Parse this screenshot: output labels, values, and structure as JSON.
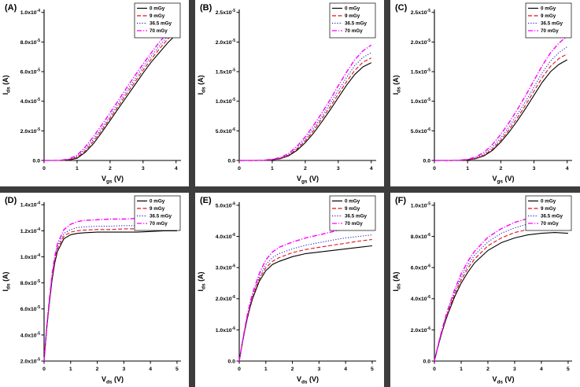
{
  "figure": {
    "background": "#ffffff",
    "separator_color": "#3d3d3d",
    "legend_labels": [
      "0 mGy",
      "9 mGy",
      "36.5 mGy",
      "70 mGy"
    ],
    "series_colors": {
      "0 mGy": "#000000",
      "9 mGy": "#e31219",
      "36.5 mGy": "#2323cc",
      "70 mGy": "#ff00ff"
    }
  },
  "chart_data": [
    {
      "type": "line",
      "panel_label": "(A)",
      "xlabel": "V_gs (V)",
      "ylabel": "I_ds (A)",
      "xlim": [
        0,
        4.15
      ],
      "ylim": [
        0,
        0.000102
      ],
      "xticks": [
        0,
        1,
        2,
        3,
        4
      ],
      "yticks": [
        0,
        2e-05,
        4e-05,
        6e-05,
        8e-05,
        0.0001
      ],
      "legend_position": "top-right",
      "grid": false,
      "x": [
        0,
        0.5,
        0.75,
        1,
        1.25,
        1.5,
        1.75,
        2,
        2.25,
        2.5,
        2.75,
        3,
        3.25,
        3.5,
        3.75,
        4
      ],
      "series": [
        {
          "name": "0 mGy",
          "color": "#000000",
          "dash": "solid",
          "y": [
            0,
            0,
            3e-07,
            1.5e-06,
            5.5e-06,
            1.15e-05,
            1.9e-05,
            2.7e-05,
            3.5e-05,
            4.3e-05,
            5.1e-05,
            5.9e-05,
            6.65e-05,
            7.3e-05,
            7.95e-05,
            8.5e-05
          ]
        },
        {
          "name": "9 mGy",
          "color": "#e31219",
          "dash": "dashed",
          "y": [
            0,
            0,
            5e-07,
            2e-06,
            6.5e-06,
            1.3e-05,
            2.05e-05,
            2.85e-05,
            3.67e-05,
            4.5e-05,
            5.3e-05,
            6.1e-05,
            6.85e-05,
            7.55e-05,
            8.2e-05,
            8.75e-05
          ]
        },
        {
          "name": "36.5 mGy",
          "color": "#2323cc",
          "dash": "dotted",
          "y": [
            0,
            0,
            7e-07,
            2.7e-06,
            7.8e-06,
            1.45e-05,
            2.2e-05,
            3e-05,
            3.85e-05,
            4.68e-05,
            5.5e-05,
            6.3e-05,
            7.05e-05,
            7.75e-05,
            8.4e-05,
            9e-05
          ]
        },
        {
          "name": "70 mGy",
          "color": "#ff00ff",
          "dash": "dashdot",
          "y": [
            0,
            1e-07,
            1e-06,
            3.5e-06,
            9.2e-06,
            1.62e-05,
            2.4e-05,
            3.22e-05,
            4.05e-05,
            4.9e-05,
            5.72e-05,
            6.52e-05,
            7.28e-05,
            8e-05,
            8.65e-05,
            9.3e-05
          ]
        }
      ]
    },
    {
      "type": "line",
      "panel_label": "(B)",
      "xlabel": "V_gs (V)",
      "ylabel": "I_ds (A)",
      "xlim": [
        0,
        4.15
      ],
      "ylim": [
        0,
        2.55e-05
      ],
      "xticks": [
        0,
        1,
        2,
        3,
        4
      ],
      "yticks": [
        0,
        5e-06,
        1e-05,
        1.5e-05,
        2e-05,
        2.5e-05
      ],
      "legend_position": "top-right",
      "grid": false,
      "x": [
        0,
        0.5,
        0.75,
        1,
        1.25,
        1.5,
        1.75,
        2,
        2.25,
        2.5,
        2.75,
        3,
        3.25,
        3.5,
        3.75,
        4
      ],
      "series": [
        {
          "name": "0 mGy",
          "color": "#000000",
          "dash": "solid",
          "y": [
            0,
            0,
            0,
            1e-07,
            3e-07,
            8e-07,
            1.7e-06,
            3e-06,
            4.6e-06,
            6.5e-06,
            8.5e-06,
            1.06e-05,
            1.27e-05,
            1.45e-05,
            1.58e-05,
            1.65e-05
          ]
        },
        {
          "name": "9 mGy",
          "color": "#e31219",
          "dash": "dashed",
          "y": [
            0,
            0,
            0,
            1.2e-07,
            3.5e-07,
            9e-07,
            1.9e-06,
            3.3e-06,
            5e-06,
            7e-06,
            9e-06,
            1.12e-05,
            1.33e-05,
            1.52e-05,
            1.66e-05,
            1.73e-05
          ]
        },
        {
          "name": "36.5 mGy",
          "color": "#2323cc",
          "dash": "dotted",
          "y": [
            0,
            0,
            0,
            1.5e-07,
            4e-07,
            1e-06,
            2.1e-06,
            3.6e-06,
            5.4e-06,
            7.4e-06,
            9.6e-06,
            1.18e-05,
            1.4e-05,
            1.6e-05,
            1.74e-05,
            1.82e-05
          ]
        },
        {
          "name": "70 mGy",
          "color": "#ff00ff",
          "dash": "dashdot",
          "y": [
            0,
            0,
            5e-08,
            2e-07,
            5e-07,
            1.2e-06,
            2.4e-06,
            4e-06,
            5.9e-06,
            8e-06,
            1.02e-05,
            1.26e-05,
            1.49e-05,
            1.7e-05,
            1.85e-05,
            1.95e-05
          ]
        }
      ]
    },
    {
      "type": "line",
      "panel_label": "(C)",
      "xlabel": "V_gs (V)",
      "ylabel": "I_ds (A)",
      "xlim": [
        0,
        4.15
      ],
      "ylim": [
        0,
        2.55e-05
      ],
      "xticks": [
        0,
        1,
        2,
        3,
        4
      ],
      "yticks": [
        0,
        5e-06,
        1e-05,
        1.5e-05,
        2e-05,
        2.5e-05
      ],
      "legend_position": "top-right",
      "grid": false,
      "x": [
        0,
        0.5,
        0.75,
        1,
        1.25,
        1.5,
        1.75,
        2,
        2.25,
        2.5,
        2.75,
        3,
        3.25,
        3.5,
        3.75,
        4
      ],
      "series": [
        {
          "name": "0 mGy",
          "color": "#000000",
          "dash": "solid",
          "y": [
            0,
            0,
            0,
            1e-07,
            3e-07,
            8e-07,
            1.7e-06,
            3.1e-06,
            4.8e-06,
            6.7e-06,
            8.8e-06,
            1.1e-05,
            1.32e-05,
            1.5e-05,
            1.62e-05,
            1.7e-05
          ]
        },
        {
          "name": "9 mGy",
          "color": "#e31219",
          "dash": "dashed",
          "y": [
            0,
            0,
            0,
            1.2e-07,
            3.5e-07,
            9e-07,
            1.9e-06,
            3.4e-06,
            5.2e-06,
            7.2e-06,
            9.4e-06,
            1.17e-05,
            1.4e-05,
            1.59e-05,
            1.72e-05,
            1.8e-05
          ]
        },
        {
          "name": "36.5 mGy",
          "color": "#2323cc",
          "dash": "dotted",
          "y": [
            0,
            0,
            0,
            1.5e-07,
            4.5e-07,
            1.1e-06,
            2.2e-06,
            3.8e-06,
            5.7e-06,
            7.8e-06,
            1e-05,
            1.24e-05,
            1.48e-05,
            1.68e-05,
            1.82e-05,
            1.92e-05
          ]
        },
        {
          "name": "70 mGy",
          "color": "#ff00ff",
          "dash": "dashdot",
          "y": [
            0,
            0,
            5e-08,
            2e-07,
            6e-07,
            1.4e-06,
            2.7e-06,
            4.4e-06,
            6.4e-06,
            8.6e-06,
            1.1e-05,
            1.35e-05,
            1.6e-05,
            1.82e-05,
            1.98e-05,
            2.1e-05
          ]
        }
      ]
    },
    {
      "type": "line",
      "panel_label": "(D)",
      "xlabel": "V_ds (V)",
      "ylabel": "I_ds (A)",
      "xlim": [
        0,
        5.15
      ],
      "ylim": [
        2e-05,
        0.000142
      ],
      "xticks": [
        0,
        1,
        2,
        3,
        4,
        5
      ],
      "yticks": [
        2e-05,
        4e-05,
        6e-05,
        8e-05,
        0.0001,
        0.00012,
        0.00014
      ],
      "legend_position": "top-right",
      "grid": false,
      "x": [
        0,
        0.1,
        0.2,
        0.3,
        0.4,
        0.5,
        0.75,
        1,
        1.25,
        1.5,
        2,
        2.5,
        3,
        3.5,
        4,
        4.5,
        5
      ],
      "series": [
        {
          "name": "0 mGy",
          "color": "#000000",
          "dash": "solid",
          "y": [
            2e-05,
            4.5e-05,
            6.5e-05,
            8.2e-05,
            9.5e-05,
            0.000104,
            0.000114,
            0.000117,
            0.000118,
            0.0001185,
            0.000119,
            0.000119,
            0.000119,
            0.000119,
            0.0001195,
            0.00012,
            0.00012
          ]
        },
        {
          "name": "9 mGy",
          "color": "#e31219",
          "dash": "dashed",
          "y": [
            2e-05,
            4.6e-05,
            6.6e-05,
            8.4e-05,
            9.7e-05,
            0.000106,
            0.000116,
            0.000119,
            0.00012,
            0.0001205,
            0.000121,
            0.000121,
            0.0001215,
            0.0001215,
            0.000122,
            0.000122,
            0.000122
          ]
        },
        {
          "name": "36.5 mGy",
          "color": "#2323cc",
          "dash": "dotted",
          "y": [
            2e-05,
            4.6e-05,
            6.7e-05,
            8.5e-05,
            9.8e-05,
            0.000108,
            0.000118,
            0.000121,
            0.0001225,
            0.000123,
            0.0001235,
            0.0001235,
            0.000124,
            0.000124,
            0.0001245,
            0.000125,
            0.000125
          ]
        },
        {
          "name": "70 mGy",
          "color": "#ff00ff",
          "dash": "dashdot",
          "y": [
            2e-05,
            4.7e-05,
            6.8e-05,
            8.7e-05,
            0.0001,
            0.00011,
            0.000121,
            0.000125,
            0.000127,
            0.000128,
            0.0001285,
            0.000129,
            0.000129,
            0.0001295,
            0.00013,
            0.00013,
            0.00013
          ]
        }
      ]
    },
    {
      "type": "line",
      "panel_label": "(E)",
      "xlabel": "V_ds (V)",
      "ylabel": "I_ds (A)",
      "xlim": [
        0,
        5.15
      ],
      "ylim": [
        0,
        5.1e-06
      ],
      "xticks": [
        0,
        1,
        2,
        3,
        4,
        5
      ],
      "yticks": [
        0,
        1e-06,
        2e-06,
        3e-06,
        4e-06,
        5e-06
      ],
      "legend_position": "top-right",
      "grid": false,
      "x": [
        0,
        0.1,
        0.2,
        0.3,
        0.4,
        0.5,
        0.75,
        1,
        1.25,
        1.5,
        2,
        2.5,
        3,
        3.5,
        4,
        4.5,
        5
      ],
      "series": [
        {
          "name": "0 mGy",
          "color": "#000000",
          "dash": "solid",
          "y": [
            0,
            5e-07,
            9.5e-07,
            1.35e-06,
            1.7e-06,
            2e-06,
            2.55e-06,
            2.9e-06,
            3.1e-06,
            3.2e-06,
            3.35e-06,
            3.45e-06,
            3.5e-06,
            3.55e-06,
            3.6e-06,
            3.65e-06,
            3.7e-06
          ]
        },
        {
          "name": "9 mGy",
          "color": "#e31219",
          "dash": "dashed",
          "y": [
            0,
            5e-07,
            9.7e-07,
            1.38e-06,
            1.74e-06,
            2.05e-06,
            2.62e-06,
            3e-06,
            3.2e-06,
            3.32e-06,
            3.48e-06,
            3.58e-06,
            3.65e-06,
            3.72e-06,
            3.78e-06,
            3.85e-06,
            3.9e-06
          ]
        },
        {
          "name": "36.5 mGy",
          "color": "#2323cc",
          "dash": "dotted",
          "y": [
            0,
            5.2e-07,
            1e-06,
            1.42e-06,
            1.78e-06,
            2.1e-06,
            2.7e-06,
            3.1e-06,
            3.32e-06,
            3.45e-06,
            3.6e-06,
            3.72e-06,
            3.8e-06,
            3.88e-06,
            3.95e-06,
            4e-06,
            4.05e-06
          ]
        },
        {
          "name": "70 mGy",
          "color": "#ff00ff",
          "dash": "dashdot",
          "y": [
            0,
            5.3e-07,
            1.02e-06,
            1.46e-06,
            1.84e-06,
            2.18e-06,
            2.8e-06,
            3.25e-06,
            3.5e-06,
            3.65e-06,
            3.82e-06,
            3.95e-06,
            4.05e-06,
            4.15e-06,
            4.25e-06,
            4.3e-06,
            4.35e-06
          ]
        }
      ]
    },
    {
      "type": "line",
      "panel_label": "(F)",
      "xlabel": "V_ds (V)",
      "ylabel": "I_ds (A)",
      "xlim": [
        0,
        5.15
      ],
      "ylim": [
        0,
        1.02e-05
      ],
      "xticks": [
        0,
        1,
        2,
        3,
        4,
        5
      ],
      "yticks": [
        0,
        2e-06,
        4e-06,
        6e-06,
        8e-06,
        1e-05
      ],
      "legend_position": "top-right",
      "grid": false,
      "x": [
        0,
        0.1,
        0.2,
        0.3,
        0.4,
        0.5,
        0.75,
        1,
        1.25,
        1.5,
        2,
        2.5,
        3,
        3.5,
        4,
        4.5,
        5
      ],
      "series": [
        {
          "name": "0 mGy",
          "color": "#000000",
          "dash": "solid",
          "y": [
            0,
            7e-07,
            1.35e-06,
            1.95e-06,
            2.5e-06,
            3e-06,
            4.1e-06,
            5e-06,
            5.7e-06,
            6.3e-06,
            7.1e-06,
            7.6e-06,
            7.9e-06,
            8.1e-06,
            8.2e-06,
            8.25e-06,
            8.2e-06
          ]
        },
        {
          "name": "9 mGy",
          "color": "#e31219",
          "dash": "dashed",
          "y": [
            0,
            7.2e-07,
            1.4e-06,
            2e-06,
            2.58e-06,
            3.1e-06,
            4.25e-06,
            5.2e-06,
            5.95e-06,
            6.55e-06,
            7.4e-06,
            7.9e-06,
            8.25e-06,
            8.45e-06,
            8.55e-06,
            8.6e-06,
            8.6e-06
          ]
        },
        {
          "name": "36.5 mGy",
          "color": "#2323cc",
          "dash": "dotted",
          "y": [
            0,
            7.4e-07,
            1.43e-06,
            2.06e-06,
            2.65e-06,
            3.2e-06,
            4.4e-06,
            5.4e-06,
            6.15e-06,
            6.8e-06,
            7.65e-06,
            8.2e-06,
            8.55e-06,
            8.8e-06,
            8.9e-06,
            9e-06,
            8.95e-06
          ]
        },
        {
          "name": "70 mGy",
          "color": "#ff00ff",
          "dash": "dashdot",
          "y": [
            0,
            7.5e-07,
            1.47e-06,
            2.12e-06,
            2.73e-06,
            3.3e-06,
            4.55e-06,
            5.6e-06,
            6.4e-06,
            7.05e-06,
            7.95e-06,
            8.5e-06,
            8.9e-06,
            9.15e-06,
            9.3e-06,
            9.4e-06,
            9.35e-06
          ]
        }
      ]
    }
  ]
}
